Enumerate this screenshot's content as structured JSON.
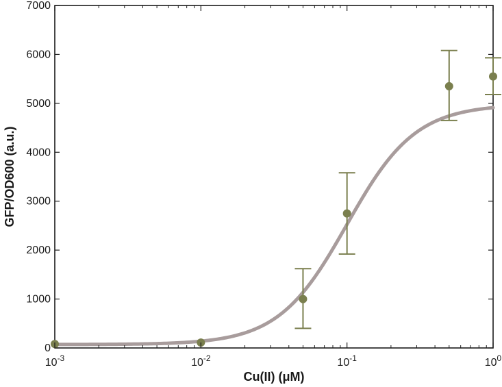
{
  "chart_data": {
    "type": "scatter",
    "xlabel": "Cu(II) (μM)",
    "ylabel": "GFP/OD600 (a.u.)",
    "x_scale": "log",
    "xlim": [
      0.001,
      1
    ],
    "ylim": [
      0,
      7000
    ],
    "x_ticks": [
      {
        "value": 0.001,
        "base": "10",
        "exp": "-3"
      },
      {
        "value": 0.01,
        "base": "10",
        "exp": "-2"
      },
      {
        "value": 0.1,
        "base": "10",
        "exp": "-1"
      },
      {
        "value": 1,
        "base": "10",
        "exp": "0"
      }
    ],
    "y_ticks": [
      0,
      1000,
      2000,
      3000,
      4000,
      5000,
      6000,
      7000
    ],
    "grid": false,
    "series": [
      {
        "kind": "points_with_error_bars",
        "color": "#7a7f4e",
        "x": [
          0.001,
          0.01,
          0.05,
          0.1,
          0.5,
          1
        ],
        "y": [
          80,
          110,
          1000,
          2750,
          5350,
          5550
        ],
        "y_err_low": [
          0,
          0,
          600,
          830,
          700,
          370
        ],
        "y_err_high": [
          0,
          0,
          620,
          830,
          730,
          380
        ]
      },
      {
        "kind": "fit_curve",
        "color": "#a89c9c",
        "model": "hill",
        "baseline": 70,
        "max": 4980,
        "ec50": 0.1,
        "hill_n": 1.85
      }
    ]
  }
}
